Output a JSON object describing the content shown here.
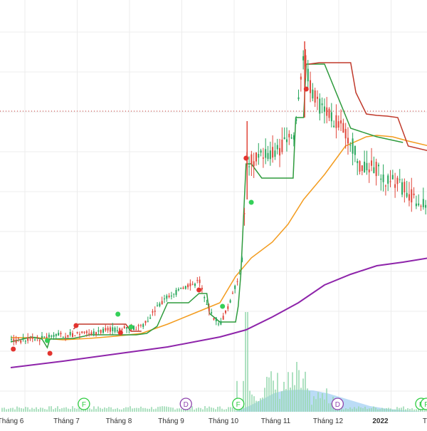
{
  "chart_data": {
    "type": "candlestick",
    "title": "",
    "xlabel": "",
    "ylabel": "",
    "grid": true,
    "legend": "none",
    "x_tick_labels": [
      "Tháng 6",
      "Tháng 7",
      "Tháng 8",
      "Tháng 9",
      "Tháng 10",
      "Tháng 11",
      "Tháng 12",
      "2022",
      "Tháng"
    ],
    "x_tick_positions_months": [
      0,
      1,
      2,
      3,
      4,
      5,
      6,
      7,
      8
    ],
    "y_range": [
      0,
      600
    ],
    "reference_line": {
      "style": "dotted",
      "color": "#c9302c",
      "value": 156
    },
    "colors": {
      "up": "#26a65b",
      "down": "#e0463a",
      "ma_fast": "#f39c1f",
      "ma_slow": "#8e24aa",
      "stop_long": "#2e9b3d",
      "stop_short": "#c0392b",
      "volume": "#9ad9b1",
      "volume_area": "#8ec5f0",
      "grid": "#ececec",
      "event_green": "#2ecc40",
      "event_purple": "#8e44ad"
    },
    "ma_fast": {
      "x": [
        0,
        0.5,
        1,
        1.5,
        2,
        2.5,
        3,
        3.5,
        4,
        4.3,
        4.6,
        5,
        5.3,
        5.6,
        6,
        6.4,
        6.8,
        7,
        7.3,
        7.6,
        8,
        8.3
      ],
      "y": [
        474,
        474,
        477,
        475,
        472,
        468,
        455,
        440,
        425,
        388,
        362,
        340,
        315,
        280,
        245,
        205,
        192,
        190,
        192,
        198,
        205,
        220
      ]
    },
    "ma_slow": {
      "x": [
        0,
        1,
        2,
        3,
        4,
        4.5,
        5,
        5.5,
        6,
        6.5,
        7,
        7.5,
        8,
        8.3
      ],
      "y": [
        516,
        507,
        497,
        487,
        473,
        463,
        445,
        425,
        400,
        385,
        373,
        368,
        362,
        357
      ]
    },
    "stop_long": {
      "x": [
        0,
        0.4,
        0.6,
        0.7,
        0.75,
        1.2,
        1.4,
        1.5,
        2,
        2.4,
        2.6,
        2.8,
        3,
        3.4,
        3.6,
        3.75,
        3.8,
        4,
        4.3,
        4.35,
        4.4,
        4.5,
        4.6,
        4.8,
        5,
        5.4,
        5.45,
        5.6,
        5.65,
        5.75,
        6,
        6.5,
        7,
        7.5
      ],
      "y": [
        480,
        473,
        476,
        488,
        476,
        475,
        472,
        470,
        470,
        470,
        468,
        458,
        425,
        425,
        412,
        412,
        440,
        452,
        452,
        430,
        385,
        230,
        230,
        250,
        250,
        250,
        165,
        165,
        90,
        90,
        90,
        180,
        192,
        200
      ]
    },
    "stop_short": {
      "x": [
        1.2,
        1.3,
        1.4,
        2,
        2.2,
        2.3,
        2.5
      ],
      "y": [
        462,
        455,
        455,
        455,
        455,
        465,
        465
      ],
      "x2": [
        5.7,
        5.9,
        6.2,
        6.5,
        6.6,
        6.8,
        7,
        7.2,
        7.4,
        7.6,
        8,
        8.3
      ],
      "y2": [
        90,
        88,
        88,
        88,
        130,
        160,
        162,
        163,
        165,
        205,
        212,
        212
      ]
    },
    "signal_dots_red": {
      "x": [
        0.05,
        0.75,
        1.25,
        2.1,
        3.6,
        4.5,
        5.65
      ],
      "y": [
        490,
        496,
        457,
        467,
        407,
        222,
        125
      ]
    },
    "signal_dots_green": {
      "x": [
        0.7,
        2.05,
        2.3,
        4.05,
        4.6
      ],
      "y": [
        478,
        441,
        459,
        430,
        284
      ]
    },
    "events": [
      {
        "label": "F",
        "kind": "green",
        "month": 1.4
      },
      {
        "label": "D",
        "kind": "purple",
        "month": 3.35
      },
      {
        "label": "F",
        "kind": "green",
        "month": 4.35
      },
      {
        "label": "D",
        "kind": "purple",
        "month": 6.25
      },
      {
        "label": "F",
        "kind": "green",
        "month": 7.85
      },
      {
        "label": "F",
        "kind": "green",
        "month": 7.95
      }
    ]
  }
}
